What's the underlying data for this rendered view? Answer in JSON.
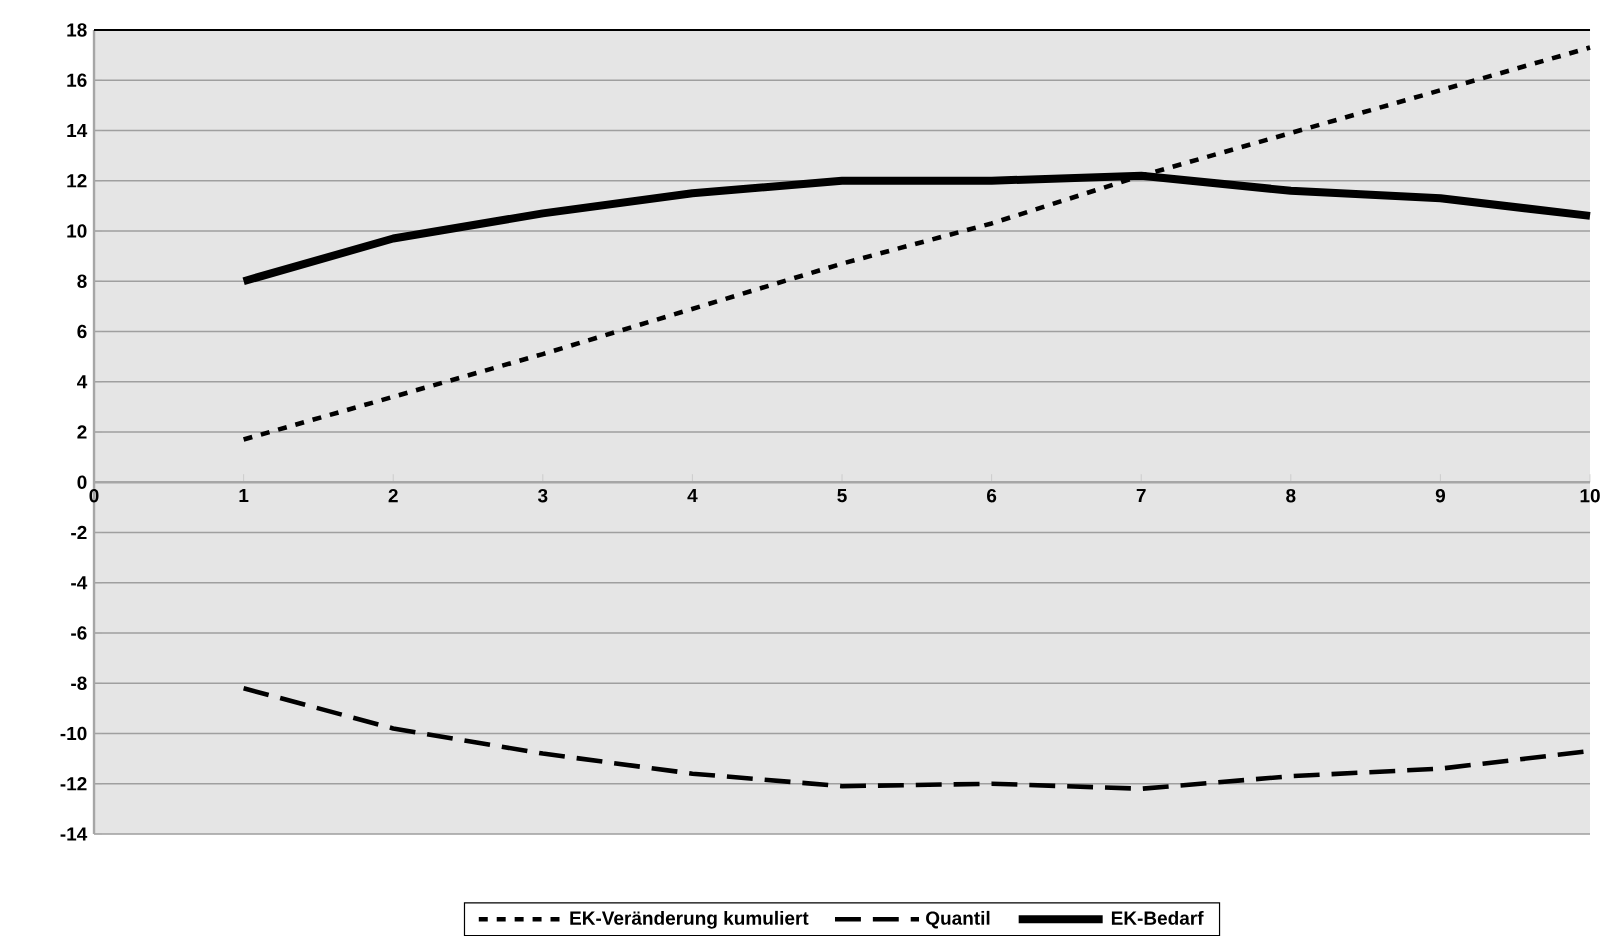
{
  "chart_data": {
    "type": "line",
    "x": [
      1,
      2,
      3,
      4,
      5,
      6,
      7,
      8,
      9,
      10
    ],
    "xlim": [
      0,
      10
    ],
    "xticks": [
      0,
      1,
      2,
      3,
      4,
      5,
      6,
      7,
      8,
      9,
      10
    ],
    "ylim": [
      -14,
      18
    ],
    "yticks": [
      -14,
      -12,
      -10,
      -8,
      -6,
      -4,
      -2,
      0,
      2,
      4,
      6,
      8,
      10,
      12,
      14,
      16,
      18
    ],
    "grid": "y",
    "legend": "bottom",
    "marker": "none",
    "series": [
      {
        "name": "EK-Veränderung kumuliert",
        "color": "#000000",
        "line_style": "dotted",
        "values": [
          1.7,
          3.4,
          5.1,
          6.9,
          8.7,
          10.3,
          12.2,
          13.9,
          15.6,
          17.3
        ]
      },
      {
        "name": "Quantil",
        "color": "#000000",
        "line_style": "dashed",
        "values": [
          -8.2,
          -9.8,
          -10.8,
          -11.6,
          -12.1,
          -12.0,
          -12.2,
          -11.7,
          -11.4,
          -10.7
        ]
      },
      {
        "name": "EK-Bedarf",
        "color": "#000000",
        "line_style": "solid",
        "values": [
          8.0,
          9.7,
          10.7,
          11.5,
          12.0,
          12.0,
          12.2,
          11.6,
          11.3,
          10.6
        ]
      }
    ]
  }
}
